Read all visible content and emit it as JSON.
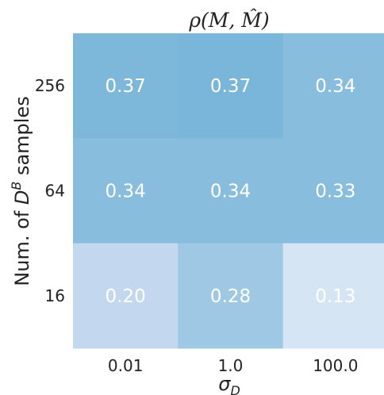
{
  "chart_data": {
    "type": "heatmap",
    "title": "ρ(M, M̂)",
    "xlabel": "σ",
    "xlabel_sub": "D",
    "ylabel_prefix": "Num. of ",
    "ylabel_var": "D",
    "ylabel_sup": "B",
    "ylabel_suffix": " samples",
    "x_ticks": [
      "0.01",
      "1.0",
      "100.0"
    ],
    "y_ticks": [
      "256",
      "64",
      "16"
    ],
    "values": [
      [
        "0.37",
        "0.37",
        "0.34"
      ],
      [
        "0.34",
        "0.34",
        "0.33"
      ],
      [
        "0.20",
        "0.28",
        "0.13"
      ]
    ],
    "colors": [
      [
        "#7db7da",
        "#7ab5da",
        "#88bddd"
      ],
      [
        "#88bddd",
        "#88bddd",
        "#88bddd"
      ],
      [
        "#c3d8ee",
        "#9ec8e3",
        "#d6e5f3"
      ]
    ],
    "legend": "none",
    "grid": false
  }
}
